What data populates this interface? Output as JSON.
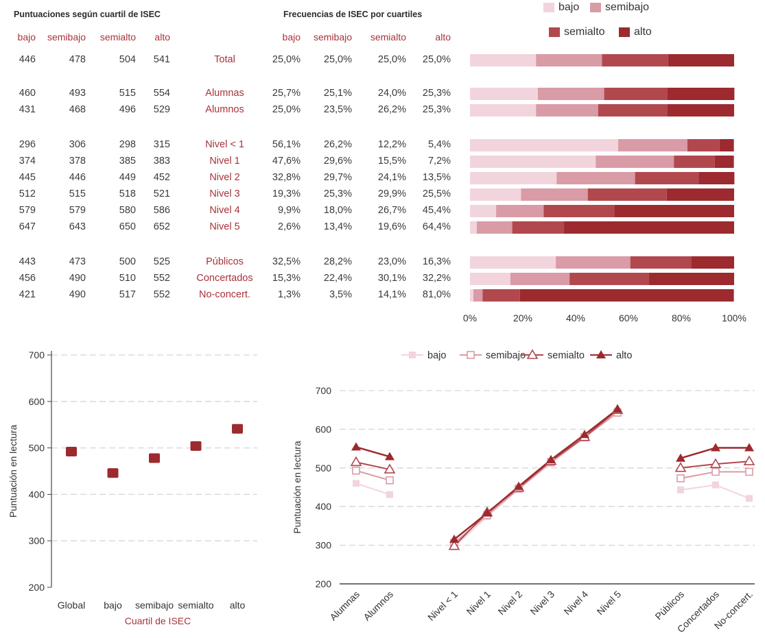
{
  "colors": {
    "bajo": "#f2d4dc",
    "semibajo": "#d99ba6",
    "semialto": "#b1484e",
    "alto": "#9c2a2e",
    "accent": "#a8323a",
    "grid": "#d6d6d6"
  },
  "table": {
    "scores_title": "Puntuaciones según cuartil de ISEC",
    "freq_title": "Frecuencias de ISEC por cuartiles",
    "score_headers": [
      "bajo",
      "semibajo",
      "semialto",
      "alto"
    ],
    "freq_headers": [
      "bajo",
      "semibajo",
      "semialto",
      "alto"
    ],
    "rows": [
      {
        "label": "Total",
        "scores": [
          "446",
          "478",
          "504",
          "541"
        ],
        "freqs": [
          "25,0%",
          "25,0%",
          "25,0%",
          "25,0%"
        ]
      },
      {
        "label": "Alumnas",
        "scores": [
          "460",
          "493",
          "515",
          "554"
        ],
        "freqs": [
          "25,7%",
          "25,1%",
          "24,0%",
          "25,3%"
        ]
      },
      {
        "label": "Alumnos",
        "scores": [
          "431",
          "468",
          "496",
          "529"
        ],
        "freqs": [
          "25,0%",
          "23,5%",
          "26,2%",
          "25,3%"
        ]
      },
      {
        "label": "Nivel < 1",
        "scores": [
          "296",
          "306",
          "298",
          "315"
        ],
        "freqs": [
          "56,1%",
          "26,2%",
          "12,2%",
          "5,4%"
        ]
      },
      {
        "label": "Nivel 1",
        "scores": [
          "374",
          "378",
          "385",
          "383"
        ],
        "freqs": [
          "47,6%",
          "29,6%",
          "15,5%",
          "7,2%"
        ]
      },
      {
        "label": "Nivel 2",
        "scores": [
          "445",
          "446",
          "449",
          "452"
        ],
        "freqs": [
          "32,8%",
          "29,7%",
          "24,1%",
          "13,5%"
        ]
      },
      {
        "label": "Nivel 3",
        "scores": [
          "512",
          "515",
          "518",
          "521"
        ],
        "freqs": [
          "19,3%",
          "25,3%",
          "29,9%",
          "25,5%"
        ]
      },
      {
        "label": "Nivel 4",
        "scores": [
          "579",
          "579",
          "580",
          "586"
        ],
        "freqs": [
          "9,9%",
          "18,0%",
          "26,7%",
          "45,4%"
        ]
      },
      {
        "label": "Nivel 5",
        "scores": [
          "647",
          "643",
          "650",
          "652"
        ],
        "freqs": [
          "2,6%",
          "13,4%",
          "19,6%",
          "64,4%"
        ]
      },
      {
        "label": "Públicos",
        "scores": [
          "443",
          "473",
          "500",
          "525"
        ],
        "freqs": [
          "32,5%",
          "28,2%",
          "23,0%",
          "16,3%"
        ]
      },
      {
        "label": "Concertados",
        "scores": [
          "456",
          "490",
          "510",
          "552"
        ],
        "freqs": [
          "15,3%",
          "22,4%",
          "30,1%",
          "32,2%"
        ]
      },
      {
        "label": "No-concert.",
        "scores": [
          "421",
          "490",
          "517",
          "552"
        ],
        "freqs": [
          "1,3%",
          "3,5%",
          "14,1%",
          "81,0%"
        ]
      }
    ]
  },
  "chart_data": [
    {
      "type": "bar",
      "stacked": true,
      "orientation": "horizontal",
      "categories": [
        "Total",
        "Alumnas",
        "Alumnos",
        "Nivel < 1",
        "Nivel 1",
        "Nivel 2",
        "Nivel 3",
        "Nivel 4",
        "Nivel 5",
        "Públicos",
        "Concertados",
        "No-concert."
      ],
      "series": [
        {
          "name": "bajo",
          "values": [
            25.0,
            25.7,
            25.0,
            56.1,
            47.6,
            32.8,
            19.3,
            9.9,
            2.6,
            32.5,
            15.3,
            1.3
          ]
        },
        {
          "name": "semibajo",
          "values": [
            25.0,
            25.1,
            23.5,
            26.2,
            29.6,
            29.7,
            25.3,
            18.0,
            13.4,
            28.2,
            22.4,
            3.5
          ]
        },
        {
          "name": "semialto",
          "values": [
            25.0,
            24.0,
            26.2,
            12.2,
            15.5,
            24.1,
            29.9,
            26.7,
            19.6,
            23.0,
            30.1,
            14.1
          ]
        },
        {
          "name": "alto",
          "values": [
            25.0,
            25.3,
            25.3,
            5.4,
            7.2,
            13.5,
            25.5,
            45.4,
            64.4,
            16.3,
            32.2,
            81.0
          ]
        }
      ],
      "xticks": [
        "0%",
        "20%",
        "40%",
        "60%",
        "80%",
        "100%"
      ],
      "xlim": [
        0,
        100
      ],
      "legend": "top"
    },
    {
      "type": "scatter",
      "categories": [
        "Global",
        "bajo",
        "semibajo",
        "semialto",
        "alto"
      ],
      "values": [
        492,
        446,
        478,
        504,
        541
      ],
      "xlabel": "Cuartil de ISEC",
      "ylabel": "Puntuación en lectura",
      "yticks": [
        "200",
        "300",
        "400",
        "500",
        "600",
        "700"
      ],
      "ylim": [
        200,
        700
      ],
      "grid": true
    },
    {
      "type": "line",
      "categories": [
        "Alumnas",
        "Alumnos",
        "Nivel < 1",
        "Nivel 1",
        "Nivel 2",
        "Nivel 3",
        "Nivel 4",
        "Nivel 5",
        "Públicos",
        "Concertados",
        "No-concert."
      ],
      "groups": [
        [
          0,
          1
        ],
        [
          2,
          3,
          4,
          5,
          6,
          7
        ],
        [
          8,
          9,
          10
        ]
      ],
      "series": [
        {
          "name": "bajo",
          "marker": "square-filled",
          "values": [
            460,
            431,
            296,
            374,
            445,
            512,
            579,
            647,
            443,
            456,
            421
          ]
        },
        {
          "name": "semibajo",
          "marker": "square-open",
          "values": [
            493,
            468,
            306,
            378,
            446,
            515,
            579,
            643,
            473,
            490,
            490
          ]
        },
        {
          "name": "semialto",
          "marker": "triangle-open",
          "values": [
            515,
            496,
            298,
            385,
            449,
            518,
            580,
            650,
            500,
            510,
            517
          ]
        },
        {
          "name": "alto",
          "marker": "triangle-filled",
          "values": [
            554,
            529,
            315,
            383,
            452,
            521,
            586,
            652,
            525,
            552,
            552
          ]
        }
      ],
      "ylabel": "Puntuación en lectura",
      "yticks": [
        "200",
        "300",
        "400",
        "500",
        "600",
        "700"
      ],
      "ylim": [
        200,
        700
      ],
      "grid": true,
      "legend": "top"
    }
  ]
}
